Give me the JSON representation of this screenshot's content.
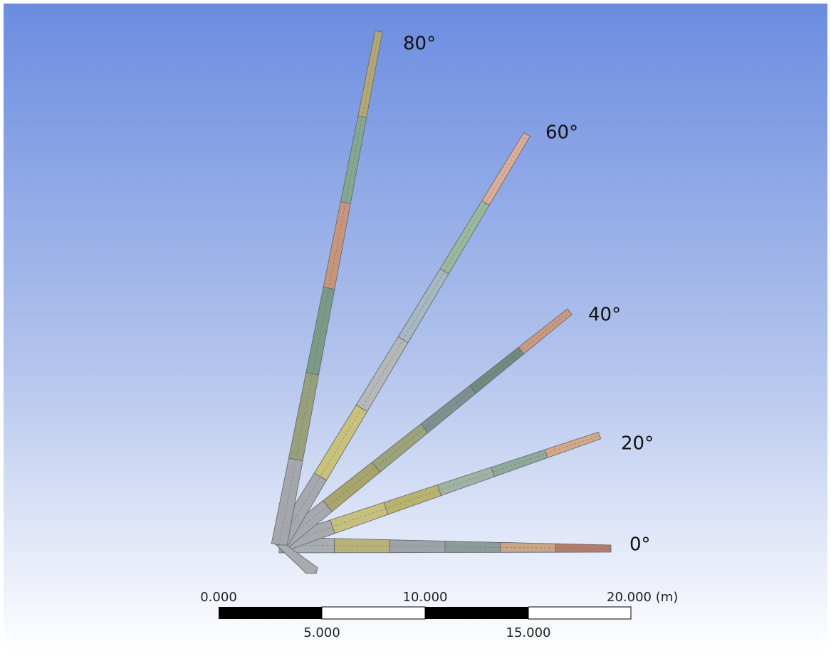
{
  "booms": [
    {
      "label": "0°"
    },
    {
      "label": "20°"
    },
    {
      "label": "40°"
    },
    {
      "label": "60°"
    },
    {
      "label": "80°"
    }
  ],
  "scale_bar": {
    "top_labels": [
      "0.000",
      "10.000",
      "20.000 (m)"
    ],
    "bottom_labels": [
      "5.000",
      "15.000"
    ]
  }
}
